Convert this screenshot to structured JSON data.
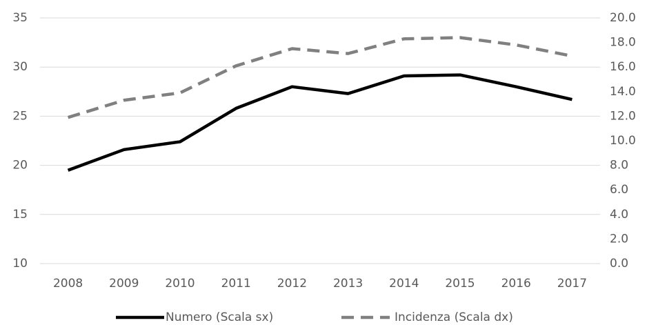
{
  "chart_data": {
    "type": "line",
    "categories": [
      "2008",
      "2009",
      "2010",
      "2011",
      "2012",
      "2013",
      "2014",
      "2015",
      "2016",
      "2017"
    ],
    "series": [
      {
        "name": "Numero (Scala sx)",
        "color": "#000000",
        "dashed": false,
        "values": [
          19.5,
          21.6,
          22.4,
          25.8,
          28.0,
          27.3,
          29.1,
          29.2,
          28.0,
          26.7
        ]
      },
      {
        "name": "Incidenza (Scala dx)",
        "color": "#808080",
        "dashed": true,
        "axis": "y2",
        "values": [
          11.9,
          13.3,
          13.9,
          16.1,
          17.5,
          17.1,
          18.3,
          18.4,
          17.8,
          16.9
        ]
      }
    ],
    "ylim": [
      10,
      35
    ],
    "yticks": [
      10,
      15,
      20,
      25,
      30,
      35
    ],
    "y2lim": [
      0,
      20
    ],
    "y2ticks": [
      {
        "value": 0,
        "label": "0.0"
      },
      {
        "value": 2,
        "label": "2.0"
      },
      {
        "value": 4,
        "label": "4.0"
      },
      {
        "value": 6,
        "label": "6.0"
      },
      {
        "value": 8,
        "label": "8.0"
      },
      {
        "value": 10,
        "label": "10.0"
      },
      {
        "value": 12,
        "label": "12.0"
      },
      {
        "value": 14,
        "label": "14.0"
      },
      {
        "value": 16,
        "label": "16.0"
      },
      {
        "value": 18,
        "label": "18.0"
      },
      {
        "value": 20,
        "label": "20.0"
      }
    ],
    "grid": true,
    "legend": "bottom"
  }
}
